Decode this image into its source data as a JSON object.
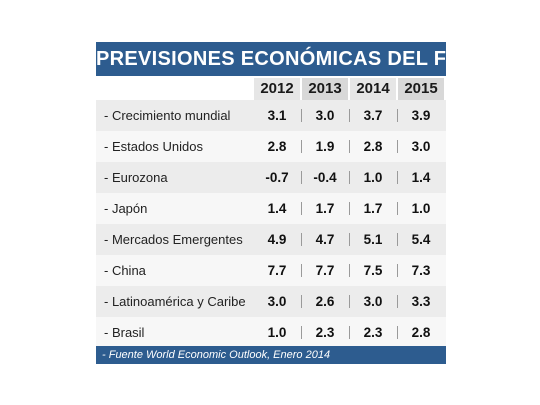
{
  "title": "PREVISIONES ECONÓMICAS DEL FMI",
  "years": [
    "2012",
    "2013",
    "2014",
    "2015"
  ],
  "rows": [
    {
      "label": "- Crecimiento mundial",
      "values": [
        "3.1",
        "3.0",
        "3.7",
        "3.9"
      ]
    },
    {
      "label": "- Estados Unidos",
      "values": [
        "2.8",
        "1.9",
        "2.8",
        "3.0"
      ]
    },
    {
      "label": "- Eurozona",
      "values": [
        "-0.7",
        "-0.4",
        "1.0",
        "1.4"
      ]
    },
    {
      "label": "- Japón",
      "values": [
        "1.4",
        "1.7",
        "1.7",
        "1.0"
      ]
    },
    {
      "label": "- Mercados Emergentes",
      "values": [
        "4.9",
        "4.7",
        "5.1",
        "5.4"
      ]
    },
    {
      "label": "- China",
      "values": [
        "7.7",
        "7.7",
        "7.5",
        "7.3"
      ]
    },
    {
      "label": "- Latinoamérica y Caribe",
      "values": [
        "3.0",
        "2.6",
        "3.0",
        "3.3"
      ]
    },
    {
      "label": "- Brasil",
      "values": [
        "1.0",
        "2.3",
        "2.3",
        "2.8"
      ]
    }
  ],
  "source": "- Fuente World Economic Outlook, Enero 2014",
  "colors": {
    "header_blue": "#2d5c8f",
    "row_odd": "#ececec",
    "row_even": "#f7f7f7"
  },
  "chart_data": {
    "type": "table",
    "title": "PREVISIONES ECONÓMICAS DEL FMI",
    "columns": [
      "2012",
      "2013",
      "2014",
      "2015"
    ],
    "rows": [
      {
        "name": "- Crecimiento mundial",
        "values": [
          3.1,
          3.0,
          3.7,
          3.9
        ]
      },
      {
        "name": "- Estados Unidos",
        "values": [
          2.8,
          1.9,
          2.8,
          3.0
        ]
      },
      {
        "name": "- Eurozona",
        "values": [
          -0.7,
          -0.4,
          1.0,
          1.4
        ]
      },
      {
        "name": "- Japón",
        "values": [
          1.4,
          1.7,
          1.7,
          1.0
        ]
      },
      {
        "name": "- Mercados Emergentes",
        "values": [
          4.9,
          4.7,
          5.1,
          5.4
        ]
      },
      {
        "name": "- China",
        "values": [
          7.7,
          7.7,
          7.5,
          7.3
        ]
      },
      {
        "name": "- Latinoamérica y Caribe",
        "values": [
          3.0,
          2.6,
          3.0,
          3.3
        ]
      },
      {
        "name": "- Brasil",
        "values": [
          1.0,
          2.3,
          2.3,
          2.8
        ]
      }
    ]
  }
}
